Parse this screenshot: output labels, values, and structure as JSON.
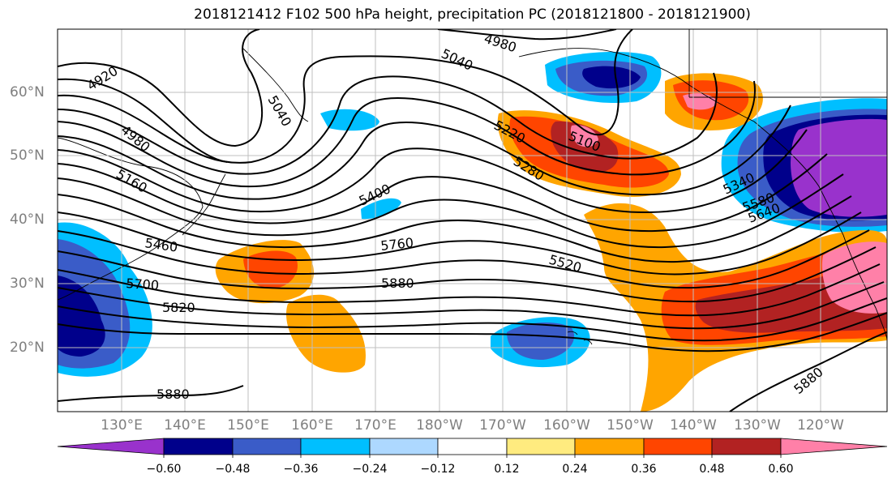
{
  "title": "2018121412 F102 500 hPa height, precipitation PC (2018121800 - 2018121900)",
  "lat_labels": [
    "60°N",
    "50°N",
    "40°N",
    "30°N",
    "20°N"
  ],
  "lon_labels": [
    "130°E",
    "140°E",
    "150°E",
    "160°E",
    "170°E",
    "180°W",
    "170°W",
    "160°W",
    "150°W",
    "140°W",
    "130°W",
    "120°W"
  ],
  "contour_labels": [
    "4920",
    "4980",
    "4980",
    "5040",
    "5040",
    "5100",
    "5160",
    "5220",
    "5280",
    "5340",
    "5400",
    "5460",
    "5520",
    "5580",
    "5640",
    "5700",
    "5760",
    "5820",
    "5880",
    "5880",
    "5880"
  ],
  "colorbar": {
    "ticks": [
      "−0.60",
      "−0.48",
      "−0.36",
      "−0.24",
      "−0.12",
      "0.12",
      "0.24",
      "0.36",
      "0.48",
      "0.60"
    ],
    "colors": [
      "#9932cc",
      "#00008b",
      "#3a5cc8",
      "#00bfff",
      "#add8ff",
      "#ffffff",
      "#ffeb7f",
      "#ffa500",
      "#ff4500",
      "#b22222",
      "#ff80a8"
    ]
  }
}
